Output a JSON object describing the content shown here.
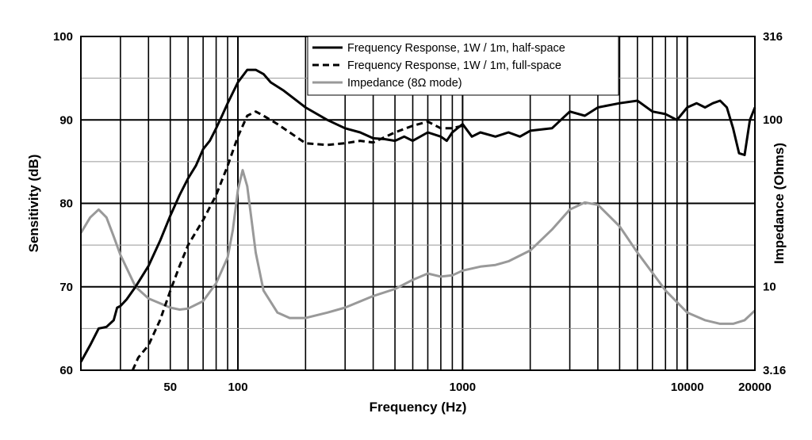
{
  "chart_data": {
    "type": "line",
    "xlabel": "Frequency (Hz)",
    "ylabel_left": "Sensitivity (dB)",
    "ylabel_right": "Impedance (Ohms)",
    "x_scale": "log",
    "xlim": [
      20,
      20000
    ],
    "ylim_left": [
      60,
      100
    ],
    "ylim_right": [
      3.16,
      316
    ],
    "y_scale_right": "log",
    "grid": true,
    "legend_position": "top-center",
    "x_tick_labels": [
      {
        "value": 50,
        "label": "50"
      },
      {
        "value": 100,
        "label": "100"
      },
      {
        "value": 1000,
        "label": "1000"
      },
      {
        "value": 10000,
        "label": "10000"
      },
      {
        "value": 20000,
        "label": "20000"
      }
    ],
    "y_left_ticks": [
      "60",
      "70",
      "80",
      "90",
      "100"
    ],
    "y_right_ticks": [
      "3.16",
      "10",
      "100",
      "316"
    ],
    "series": [
      {
        "name": "Frequency Response, 1W / 1m, half-space",
        "axis": "left",
        "color": "#000000",
        "dash": "solid",
        "points": [
          [
            20,
            61
          ],
          [
            22,
            63
          ],
          [
            24,
            65
          ],
          [
            26,
            65.2
          ],
          [
            28,
            66
          ],
          [
            29,
            67.5
          ],
          [
            30,
            67.7
          ],
          [
            32,
            68.5
          ],
          [
            35,
            70
          ],
          [
            40,
            72.5
          ],
          [
            45,
            75.5
          ],
          [
            50,
            78.5
          ],
          [
            55,
            81
          ],
          [
            60,
            83
          ],
          [
            65,
            84.5
          ],
          [
            70,
            86.5
          ],
          [
            75,
            87.5
          ],
          [
            80,
            89
          ],
          [
            85,
            90.5
          ],
          [
            90,
            92
          ],
          [
            100,
            94.5
          ],
          [
            110,
            96
          ],
          [
            120,
            96
          ],
          [
            130,
            95.5
          ],
          [
            140,
            94.5
          ],
          [
            160,
            93.5
          ],
          [
            200,
            91.5
          ],
          [
            250,
            90
          ],
          [
            300,
            89
          ],
          [
            350,
            88.5
          ],
          [
            400,
            87.8
          ],
          [
            450,
            87.7
          ],
          [
            500,
            87.5
          ],
          [
            550,
            88
          ],
          [
            600,
            87.5
          ],
          [
            700,
            88.5
          ],
          [
            800,
            88
          ],
          [
            850,
            87.5
          ],
          [
            900,
            88.5
          ],
          [
            1000,
            89.5
          ],
          [
            1100,
            88
          ],
          [
            1200,
            88.5
          ],
          [
            1400,
            88
          ],
          [
            1600,
            88.5
          ],
          [
            1800,
            88
          ],
          [
            2000,
            88.7
          ],
          [
            2500,
            89
          ],
          [
            3000,
            91
          ],
          [
            3500,
            90.5
          ],
          [
            4000,
            91.5
          ],
          [
            5000,
            92
          ],
          [
            6000,
            92.3
          ],
          [
            7000,
            91
          ],
          [
            8000,
            90.7
          ],
          [
            9000,
            90
          ],
          [
            10000,
            91.5
          ],
          [
            11000,
            92
          ],
          [
            12000,
            91.5
          ],
          [
            13000,
            92
          ],
          [
            14000,
            92.3
          ],
          [
            15000,
            91.5
          ],
          [
            16000,
            89
          ],
          [
            17000,
            86
          ],
          [
            18000,
            85.8
          ],
          [
            19000,
            90
          ],
          [
            20000,
            91.5
          ]
        ]
      },
      {
        "name": "Frequency Response, 1W / 1m, full-space",
        "axis": "left",
        "color": "#000000",
        "dash": "dashed",
        "points": [
          [
            34,
            60
          ],
          [
            36,
            61.5
          ],
          [
            40,
            63
          ],
          [
            45,
            66
          ],
          [
            50,
            69.5
          ],
          [
            55,
            72.5
          ],
          [
            60,
            75
          ],
          [
            70,
            78
          ],
          [
            80,
            81
          ],
          [
            90,
            84.5
          ],
          [
            100,
            88
          ],
          [
            110,
            90.5
          ],
          [
            120,
            91
          ],
          [
            130,
            90.5
          ],
          [
            150,
            89.5
          ],
          [
            170,
            88.5
          ],
          [
            200,
            87.2
          ],
          [
            250,
            87
          ],
          [
            300,
            87.2
          ],
          [
            350,
            87.5
          ],
          [
            400,
            87.3
          ],
          [
            500,
            88.5
          ],
          [
            600,
            89.3
          ],
          [
            700,
            89.8
          ],
          [
            800,
            89
          ],
          [
            900,
            89
          ],
          [
            1000,
            89.3
          ]
        ]
      },
      {
        "name": "Impedance (8Ω mode)",
        "axis": "right",
        "color": "#999999",
        "dash": "solid",
        "points": [
          [
            20,
            21
          ],
          [
            22,
            26
          ],
          [
            24,
            29
          ],
          [
            26,
            26
          ],
          [
            28,
            20
          ],
          [
            30,
            15.5
          ],
          [
            35,
            10
          ],
          [
            40,
            8.5
          ],
          [
            50,
            7.5
          ],
          [
            55,
            7.3
          ],
          [
            60,
            7.4
          ],
          [
            70,
            8.2
          ],
          [
            80,
            10.5
          ],
          [
            90,
            15
          ],
          [
            95,
            22
          ],
          [
            100,
            38
          ],
          [
            105,
            50
          ],
          [
            110,
            40
          ],
          [
            120,
            16
          ],
          [
            130,
            9.5
          ],
          [
            150,
            7
          ],
          [
            170,
            6.5
          ],
          [
            200,
            6.5
          ],
          [
            250,
            7
          ],
          [
            300,
            7.5
          ],
          [
            400,
            8.8
          ],
          [
            500,
            9.7
          ],
          [
            600,
            11
          ],
          [
            700,
            12
          ],
          [
            800,
            11.5
          ],
          [
            900,
            11.7
          ],
          [
            1000,
            12.5
          ],
          [
            1200,
            13.2
          ],
          [
            1400,
            13.5
          ],
          [
            1600,
            14.2
          ],
          [
            2000,
            16.5
          ],
          [
            2500,
            22
          ],
          [
            3000,
            29
          ],
          [
            3500,
            32
          ],
          [
            4000,
            31
          ],
          [
            5000,
            23
          ],
          [
            6000,
            16
          ],
          [
            8000,
            9.5
          ],
          [
            10000,
            7
          ],
          [
            12000,
            6.3
          ],
          [
            14000,
            6
          ],
          [
            16000,
            6
          ],
          [
            18000,
            6.3
          ],
          [
            20000,
            7.2
          ]
        ]
      }
    ]
  }
}
